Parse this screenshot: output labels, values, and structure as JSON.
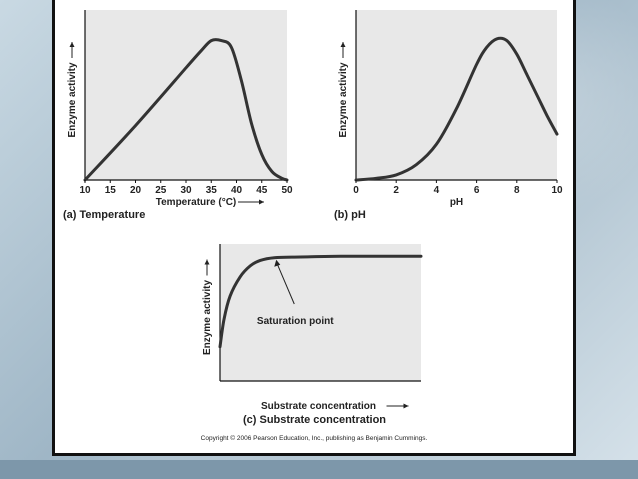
{
  "copyright": "Copyright © 2006 Pearson Education, Inc., publishing as Benjamin Cummings.",
  "colors": {
    "plot_bg": "#e8e8e8",
    "curve": "#333333"
  },
  "chart_data": [
    {
      "type": "line",
      "caption": "(a) Temperature",
      "xlabel": "Temperature (°C)",
      "ylabel": "Enzyme activity",
      "xlim": [
        10,
        50
      ],
      "ylim": [
        0,
        1
      ],
      "x_ticks": [
        10,
        15,
        20,
        25,
        30,
        35,
        40,
        45,
        50
      ],
      "series": [
        {
          "x": [
            10,
            20,
            30,
            33,
            35,
            37,
            39,
            41,
            43,
            45,
            47,
            49,
            50
          ],
          "y": [
            0.0,
            0.32,
            0.66,
            0.76,
            0.82,
            0.82,
            0.78,
            0.58,
            0.33,
            0.15,
            0.05,
            0.01,
            0.0
          ]
        }
      ]
    },
    {
      "type": "line",
      "caption": "(b) pH",
      "xlabel": "pH",
      "ylabel": "Enzyme activity",
      "xlim": [
        0,
        10
      ],
      "ylim": [
        0,
        1
      ],
      "x_ticks": [
        0,
        2,
        4,
        6,
        8,
        10
      ],
      "series": [
        {
          "x": [
            0,
            1,
            2,
            3,
            4,
            5,
            6,
            6.5,
            7,
            7.5,
            8,
            8.5,
            9,
            9.5,
            10
          ],
          "y": [
            0.0,
            0.01,
            0.03,
            0.09,
            0.21,
            0.42,
            0.68,
            0.78,
            0.83,
            0.82,
            0.74,
            0.62,
            0.5,
            0.38,
            0.27
          ]
        }
      ]
    },
    {
      "type": "line",
      "caption": "(c) Substrate concentration",
      "xlabel": "Substrate concentration",
      "ylabel": "Enzyme activity",
      "annotation": "Saturation point",
      "annotation_x": 0.27,
      "ylim": [
        0,
        1
      ],
      "series": [
        {
          "x": [
            0,
            0.02,
            0.05,
            0.1,
            0.15,
            0.2,
            0.27,
            0.4,
            0.6,
            0.8,
            1.0
          ],
          "y": [
            0.25,
            0.45,
            0.62,
            0.76,
            0.84,
            0.88,
            0.9,
            0.905,
            0.91,
            0.91,
            0.91
          ]
        }
      ]
    }
  ]
}
